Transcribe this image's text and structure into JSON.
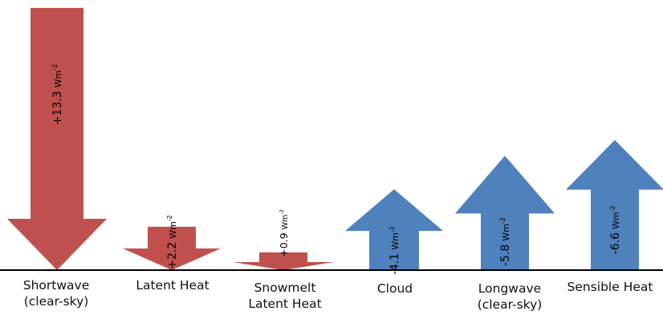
{
  "colors": {
    "positive": "#c0504d",
    "negative": "#4f81bd",
    "baseline": "#000000"
  },
  "chart_data": {
    "type": "bar",
    "categories": [
      "Shortwave (clear-sky)",
      "Latent Heat",
      "Snowmelt Latent Heat",
      "Cloud",
      "Longwave (clear-sky)",
      "Sensible Heat"
    ],
    "values": [
      13.3,
      2.2,
      0.9,
      -4.1,
      -5.8,
      -6.6
    ],
    "unit": "Wm-2",
    "value_labels": [
      "+13.3",
      "+2.2",
      "+0.9",
      "-4.1",
      "-5.8",
      "-6.6"
    ],
    "category_lines": [
      [
        "Shortwave",
        "(clear-sky)"
      ],
      [
        "Latent Heat"
      ],
      [
        "Snowmelt",
        "Latent Heat"
      ],
      [
        "Cloud"
      ],
      [
        "Longwave",
        "(clear-sky)"
      ],
      [
        "Sensible Heat"
      ]
    ]
  }
}
